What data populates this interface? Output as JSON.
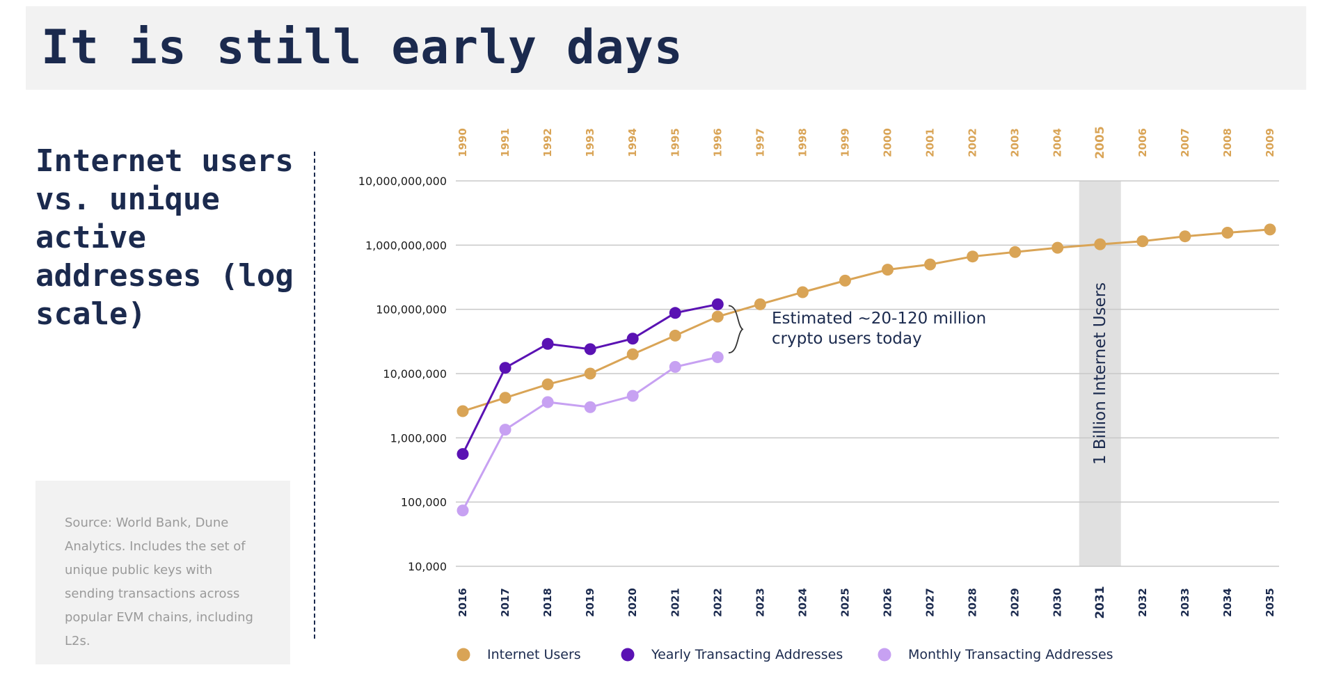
{
  "slide": {
    "title": "It is still early days",
    "subtitle": "Internet users vs. unique active addresses (log scale)",
    "source_note": "Source: World Bank, Dune Analytics. Includes the set of unique public keys with sending transactions across popular EVM chains, including L2s."
  },
  "colors": {
    "internet_users": "#d9a456",
    "yearly": "#5a12b3",
    "monthly": "#c7a1f2",
    "top_axis_text": "#d9a456",
    "highlight_band": "#e0e0e0",
    "annotation_text": "#1b2a4e"
  },
  "chart_data": {
    "type": "line",
    "y_scale": "log",
    "ylim": [
      10000,
      10000000000
    ],
    "y_tick_labels": [
      "10,000",
      "100,000",
      "1,000,000",
      "10,000,000",
      "100,000,000",
      "1,000,000,000",
      "10,000,000,000"
    ],
    "y_tick_values": [
      10000,
      100000,
      1000000,
      10000000,
      100000000,
      1000000000,
      10000000000
    ],
    "x_bottom": [
      "2016",
      "2017",
      "2018",
      "2019",
      "2020",
      "2021",
      "2022",
      "2023",
      "2024",
      "2025",
      "2026",
      "2027",
      "2028",
      "2029",
      "2030",
      "2031",
      "2032",
      "2033",
      "2034",
      "2035"
    ],
    "x_top": [
      "1990",
      "1991",
      "1992",
      "1993",
      "1994",
      "1995",
      "1996",
      "1997",
      "1998",
      "1999",
      "2000",
      "2001",
      "2002",
      "2003",
      "2004",
      "2005",
      "2006",
      "2007",
      "2008",
      "2009"
    ],
    "grid": true,
    "legend_placement": "bottom",
    "series": [
      {
        "name": "Internet Users",
        "color_key": "internet_users",
        "values": [
          2600000,
          4200000,
          6800000,
          10000000,
          20000000,
          39000000,
          77000000,
          120000000,
          185000000,
          280000000,
          415000000,
          500000000,
          665000000,
          780000000,
          910000000,
          1030000000,
          1150000000,
          1370000000,
          1560000000,
          1750000000
        ]
      },
      {
        "name": "Yearly Transacting Addresses",
        "color_key": "yearly",
        "values": [
          560000,
          12300000,
          29000000,
          24000000,
          35000000,
          88000000,
          120000000
        ]
      },
      {
        "name": "Monthly Transacting Addresses",
        "color_key": "monthly",
        "values": [
          74000,
          1340000,
          3600000,
          3000000,
          4500000,
          12700000,
          18000000
        ]
      }
    ],
    "highlight": {
      "label": "1 Billion Internet Users",
      "x_bottom": "2031",
      "x_top": "2005"
    },
    "annotation": {
      "lines": [
        "Estimated ~20-120 million",
        "crypto users today"
      ],
      "range": [
        20000000,
        120000000
      ]
    }
  }
}
